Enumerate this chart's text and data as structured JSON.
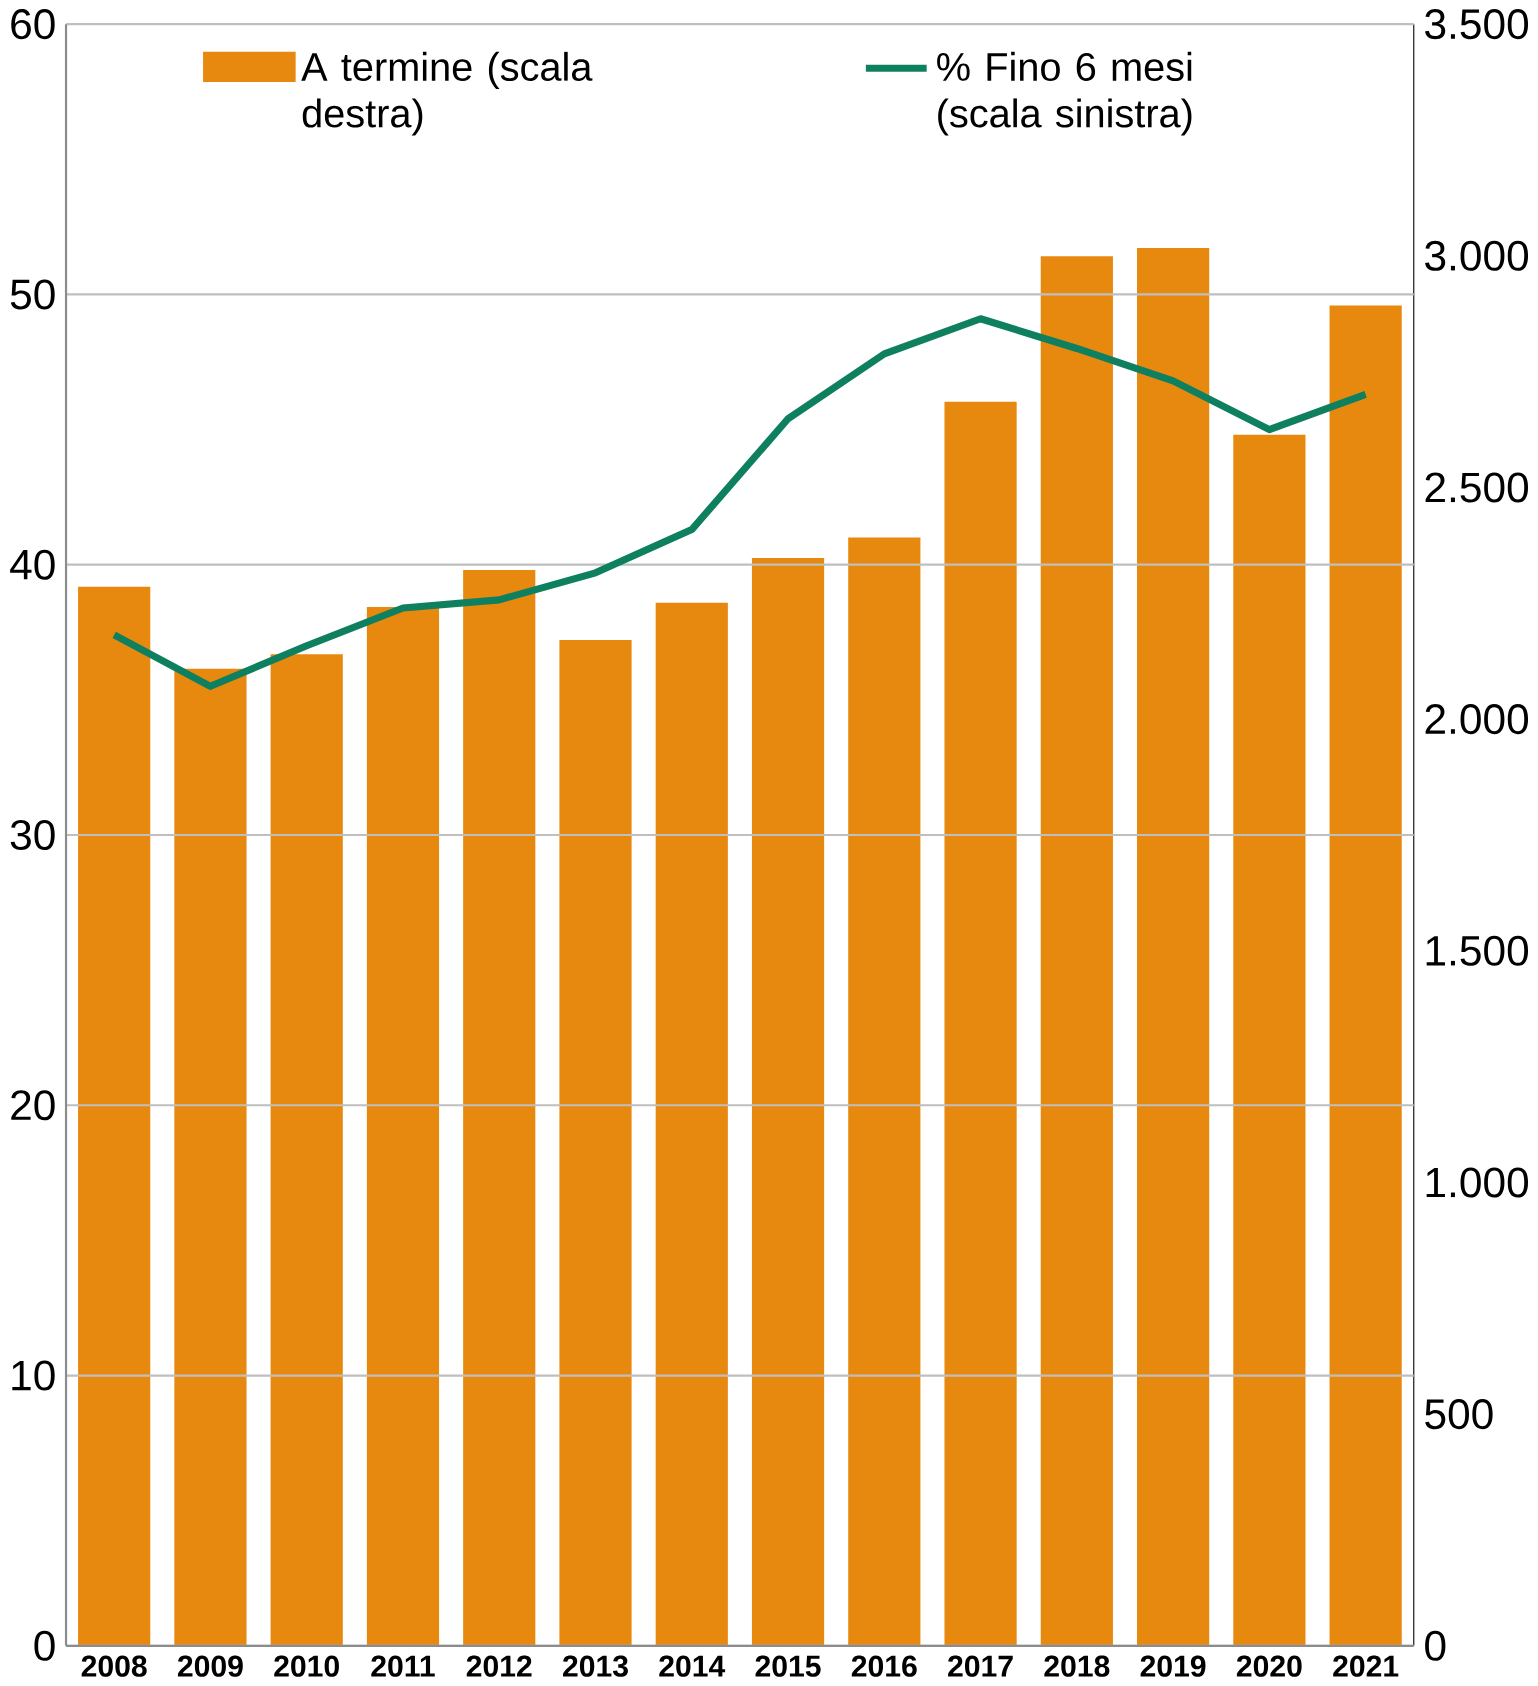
{
  "chart_data": {
    "type": "bar",
    "categories": [
      "2008",
      "2009",
      "2010",
      "2011",
      "2012",
      "2013",
      "2014",
      "2015",
      "2016",
      "2017",
      "2018",
      "2019",
      "2020",
      "2021"
    ],
    "series": [
      {
        "name": "A termine (scala destra)",
        "axis": "y2",
        "color": "#e8890f",
        "values": [
          2286,
          2109,
          2140,
          2242,
          2322,
          2171,
          2251,
          2348,
          2392,
          2685,
          2999,
          3017,
          2614,
          2893
        ]
      },
      {
        "name": "% Fino 6 mesi (scala sinistra)",
        "type": "line",
        "axis": "y",
        "color": "#0e8060",
        "values": [
          37.4,
          35.5,
          37.0,
          38.4,
          38.7,
          39.7,
          41.3,
          45.4,
          47.8,
          49.1,
          48.0,
          46.8,
          45.0,
          46.3
        ]
      }
    ],
    "ylim": [
      0,
      60
    ],
    "yticks": [
      0,
      10,
      20,
      30,
      40,
      50,
      60
    ],
    "y2lim": [
      0,
      3500
    ],
    "y2ticks": [
      0,
      500,
      {
        "value": 1000,
        "label": "1.000"
      },
      {
        "value": 1500,
        "label": "1.500"
      },
      {
        "value": 2000,
        "label": "2.000"
      },
      {
        "value": 2500,
        "label": "2.500"
      },
      {
        "value": 3000,
        "label": "3.000"
      },
      {
        "value": 3500,
        "label": "3.500"
      }
    ],
    "grid": "y",
    "legend": "top",
    "marker": "none",
    "line_style": "solid"
  }
}
